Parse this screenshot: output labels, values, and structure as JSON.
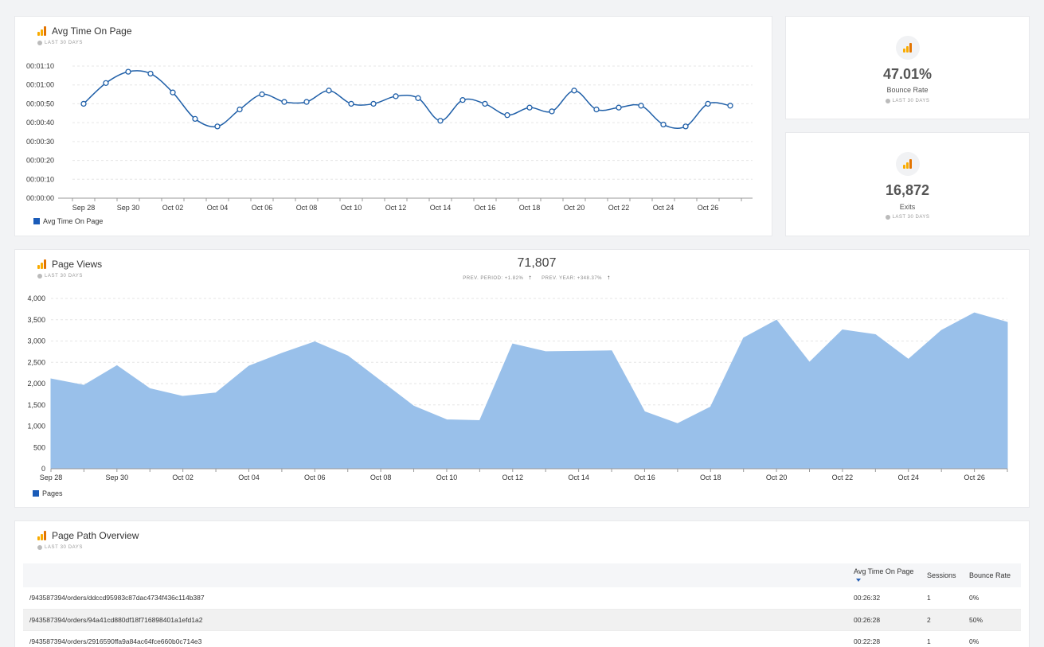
{
  "avg_time_card": {
    "title": "Avg Time On Page",
    "subtitle": "LAST 30 DAYS",
    "legend": "Avg Time On Page"
  },
  "bounce_card": {
    "value": "47.01%",
    "label": "Bounce Rate",
    "subtitle": "LAST 30 DAYS"
  },
  "exits_card": {
    "value": "16,872",
    "label": "Exits",
    "subtitle": "LAST 30 DAYS"
  },
  "page_views_card": {
    "title": "Page Views",
    "subtitle": "LAST 30 DAYS",
    "total": "71,807",
    "prev_period": "PREV. PERIOD: +1.82%",
    "prev_year": "PREV. YEAR: +348.37%",
    "legend": "Pages"
  },
  "page_path_card": {
    "title": "Page Path Overview",
    "subtitle": "LAST 30 DAYS",
    "columns": [
      "",
      "Avg Time On Page",
      "Sessions",
      "Bounce Rate"
    ],
    "rows": [
      [
        "/943587394/orders/ddccd95983c87dac4734f436c114b387",
        "00:26:32",
        "1",
        "0%"
      ],
      [
        "/943587394/orders/94a41cd880df18f716898401a1efd1a2",
        "00:26:28",
        "2",
        "50%"
      ],
      [
        "/943587394/orders/2916590ffa9a84ac64fce660b0c714e3",
        "00:22:28",
        "1",
        "0%"
      ]
    ]
  },
  "colors": {
    "line": "#1f5fa8",
    "area": "#99c0ea",
    "legend_swatch": "#1a5bb8",
    "ga_orange": "#f9ab00"
  },
  "chart_data": [
    {
      "type": "line",
      "title": "Avg Time On Page",
      "x_tick_labels": [
        "Sep 28",
        "Sep 30",
        "Oct 02",
        "Oct 04",
        "Oct 06",
        "Oct 08",
        "Oct 10",
        "Oct 12",
        "Oct 14",
        "Oct 16",
        "Oct 18",
        "Oct 20",
        "Oct 22",
        "Oct 24",
        "Oct 26"
      ],
      "y_tick_labels": [
        "00:00:00",
        "00:00:10",
        "00:00:20",
        "00:00:30",
        "00:00:40",
        "00:00:50",
        "00:01:00",
        "00:01:10"
      ],
      "ylim_seconds": [
        0,
        70
      ],
      "series": [
        {
          "name": "Avg Time On Page",
          "x": [
            "Sep 28",
            "Sep 29",
            "Sep 30",
            "Oct 01",
            "Oct 02",
            "Oct 03",
            "Oct 04",
            "Oct 05",
            "Oct 06",
            "Oct 07",
            "Oct 08",
            "Oct 09",
            "Oct 10",
            "Oct 11",
            "Oct 12",
            "Oct 13",
            "Oct 14",
            "Oct 15",
            "Oct 16",
            "Oct 17",
            "Oct 18",
            "Oct 19",
            "Oct 20",
            "Oct 21",
            "Oct 22",
            "Oct 23",
            "Oct 24",
            "Oct 25",
            "Oct 26",
            "Oct 27"
          ],
          "values_seconds": [
            50,
            61,
            67,
            66,
            56,
            42,
            38,
            47,
            55,
            51,
            51,
            57,
            50,
            50,
            54,
            53,
            41,
            52,
            50,
            44,
            48,
            46,
            57,
            47,
            48,
            49,
            39,
            38,
            50,
            49
          ]
        }
      ],
      "grid": true,
      "legend_position": "bottom-left"
    },
    {
      "type": "area",
      "title": "Page Views",
      "x_tick_labels": [
        "Sep 28",
        "Sep 30",
        "Oct 02",
        "Oct 04",
        "Oct 06",
        "Oct 08",
        "Oct 10",
        "Oct 12",
        "Oct 14",
        "Oct 16",
        "Oct 18",
        "Oct 20",
        "Oct 22",
        "Oct 24",
        "Oct 26"
      ],
      "y_tick_labels": [
        "0",
        "500",
        "1,000",
        "1,500",
        "2,000",
        "2,500",
        "3,000",
        "3,500",
        "4,000"
      ],
      "ylim": [
        0,
        4000
      ],
      "series": [
        {
          "name": "Pages",
          "x": [
            "Sep 28",
            "Sep 29",
            "Sep 30",
            "Oct 01",
            "Oct 02",
            "Oct 03",
            "Oct 04",
            "Oct 05",
            "Oct 06",
            "Oct 07",
            "Oct 08",
            "Oct 09",
            "Oct 10",
            "Oct 11",
            "Oct 12",
            "Oct 13",
            "Oct 14",
            "Oct 15",
            "Oct 16",
            "Oct 17",
            "Oct 18",
            "Oct 19",
            "Oct 20",
            "Oct 21",
            "Oct 22",
            "Oct 23",
            "Oct 24",
            "Oct 25",
            "Oct 26",
            "Oct 27"
          ],
          "values": [
            2110,
            1960,
            2420,
            1880,
            1700,
            1780,
            2410,
            2710,
            2980,
            2650,
            2060,
            1470,
            1150,
            1130,
            2930,
            2750,
            2760,
            2770,
            1340,
            1060,
            1450,
            3070,
            3490,
            2500,
            3260,
            3150,
            2570,
            3250,
            3660,
            3440
          ]
        }
      ],
      "grid": true,
      "legend_position": "bottom-left"
    }
  ]
}
